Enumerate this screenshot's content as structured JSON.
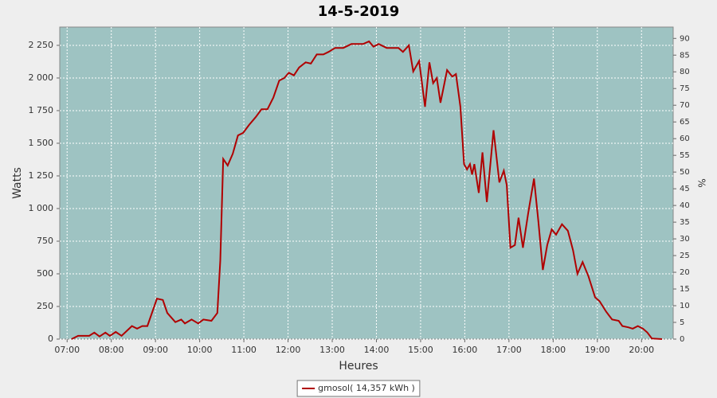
{
  "chart_data": {
    "type": "line",
    "title": "14-5-2019",
    "x_label": "Heures",
    "y_label": "Watts",
    "y2_label": "%",
    "x": [
      "07:06",
      "07:15",
      "07:30",
      "07:37",
      "07:44",
      "07:52",
      "07:58",
      "08:06",
      "08:14",
      "08:28",
      "08:35",
      "08:42",
      "08:49",
      "09:02",
      "09:10",
      "09:16",
      "09:27",
      "09:35",
      "09:40",
      "09:49",
      "09:58",
      "10:05",
      "10:16",
      "10:24",
      "10:28",
      "10:32",
      "10:38",
      "10:45",
      "10:52",
      "10:59",
      "11:07",
      "11:16",
      "11:24",
      "11:32",
      "11:40",
      "11:48",
      "11:55",
      "12:01",
      "12:08",
      "12:15",
      "12:24",
      "12:31",
      "12:39",
      "12:48",
      "12:55",
      "13:04",
      "13:15",
      "13:26",
      "13:42",
      "13:50",
      "13:56",
      "14:03",
      "14:14",
      "14:30",
      "14:36",
      "14:44",
      "14:50",
      "14:58",
      "15:06",
      "15:12",
      "15:17",
      "15:22",
      "15:27",
      "15:36",
      "15:43",
      "15:48",
      "15:54",
      "15:59",
      "16:03",
      "16:07",
      "16:10",
      "16:13",
      "16:19",
      "16:24",
      "16:30",
      "16:39",
      "16:47",
      "16:53",
      "16:57",
      "17:02",
      "17:08",
      "17:13",
      "17:19",
      "17:26",
      "17:34",
      "17:40",
      "17:46",
      "17:52",
      "17:58",
      "18:04",
      "18:12",
      "18:20",
      "18:27",
      "18:33",
      "18:40",
      "18:48",
      "18:57",
      "19:03",
      "19:12",
      "19:20",
      "19:29",
      "19:34",
      "19:42",
      "19:48",
      "19:55",
      "20:02",
      "20:08",
      "20:14",
      "20:28"
    ],
    "series": [
      {
        "name": "gmosol( 14,357 kWh )",
        "color": "#b00000",
        "values": [
          0,
          25,
          25,
          50,
          20,
          50,
          25,
          55,
          25,
          100,
          80,
          100,
          100,
          310,
          300,
          200,
          130,
          150,
          120,
          150,
          120,
          150,
          140,
          200,
          600,
          1380,
          1330,
          1420,
          1560,
          1580,
          1640,
          1700,
          1760,
          1760,
          1850,
          1980,
          2000,
          2040,
          2020,
          2080,
          2120,
          2110,
          2180,
          2180,
          2200,
          2230,
          2230,
          2260,
          2260,
          2280,
          2240,
          2260,
          2230,
          2230,
          2200,
          2250,
          2050,
          2130,
          1780,
          2120,
          1960,
          2000,
          1810,
          2060,
          2010,
          2030,
          1780,
          1340,
          1300,
          1340,
          1260,
          1340,
          1120,
          1430,
          1050,
          1600,
          1200,
          1290,
          1180,
          700,
          720,
          930,
          700,
          960,
          1230,
          900,
          530,
          720,
          840,
          800,
          880,
          830,
          680,
          500,
          590,
          480,
          320,
          290,
          210,
          150,
          140,
          100,
          90,
          80,
          100,
          80,
          50,
          5,
          0
        ]
      }
    ],
    "xlim": [
      "06:50",
      "20:43"
    ],
    "xticks": [
      "07:00",
      "08:00",
      "09:00",
      "10:00",
      "11:00",
      "12:00",
      "13:00",
      "14:00",
      "15:00",
      "16:00",
      "17:00",
      "18:00",
      "19:00",
      "20:00"
    ],
    "ylim": [
      0,
      2390
    ],
    "yticks": [
      0,
      250,
      500,
      750,
      {
        "value": 1000,
        "label": "1 000"
      },
      {
        "value": 1250,
        "label": "1 250"
      },
      {
        "value": 1500,
        "label": "1 500"
      },
      {
        "value": 1750,
        "label": "1 750"
      },
      {
        "value": 2000,
        "label": "2 000"
      },
      {
        "value": 2250,
        "label": "2 250"
      }
    ],
    "y2lim": [
      0,
      93.4
    ],
    "y2ticks": [
      0,
      5,
      10,
      15,
      20,
      25,
      30,
      35,
      40,
      45,
      50,
      55,
      60,
      65,
      70,
      75,
      80,
      85,
      90
    ],
    "grid": true,
    "background": "#9ec3c2",
    "legend": "bottom"
  }
}
